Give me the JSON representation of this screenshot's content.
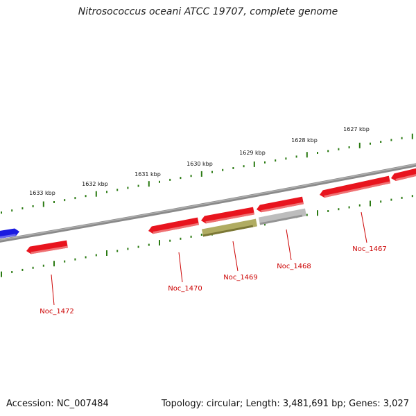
{
  "title": "Nitrosococcus oceani ATCC 19707, complete genome",
  "footer": {
    "accession": "Accession: NC_007484",
    "summary": "Topology: circular; Length: 3,481,691 bp; Genes: 3,027"
  },
  "colors": {
    "tick": "#2a7a12",
    "backbone": "#7a7a7a",
    "gene_red": "#e8141e",
    "gene_blue": "#1a1ae0",
    "gene_olive": "#b0ac62",
    "gene_gray": "#bdbdbd",
    "label": "#cc0000"
  },
  "kbp_labels": [
    "1633 kbp",
    "1632 kbp",
    "1631 kbp",
    "1630 kbp",
    "1629 kbp",
    "1628 kbp",
    "1627 kbp"
  ],
  "gene_labels": [
    "Noc_1472",
    "Noc_1470",
    "Noc_1469",
    "Noc_1468",
    "Noc_1467"
  ],
  "genes": [
    {
      "color": "blue"
    },
    {
      "color": "red"
    },
    {
      "color": "red"
    },
    {
      "color": "red"
    },
    {
      "color": "olive"
    },
    {
      "color": "red"
    },
    {
      "color": "gray"
    },
    {
      "color": "red"
    },
    {
      "color": "red"
    }
  ]
}
